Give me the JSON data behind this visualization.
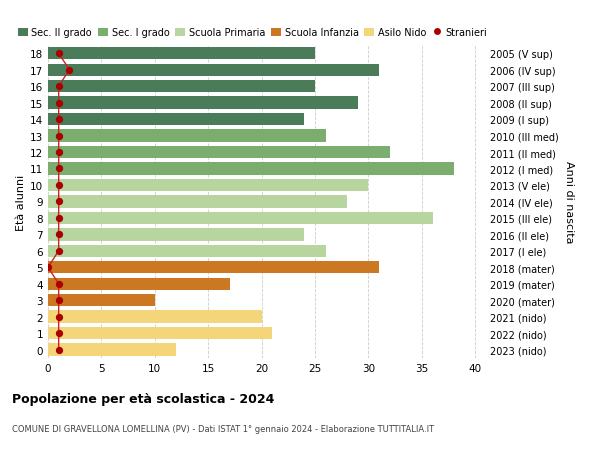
{
  "ages": [
    18,
    17,
    16,
    15,
    14,
    13,
    12,
    11,
    10,
    9,
    8,
    7,
    6,
    5,
    4,
    3,
    2,
    1,
    0
  ],
  "years": [
    "2005 (V sup)",
    "2006 (IV sup)",
    "2007 (III sup)",
    "2008 (II sup)",
    "2009 (I sup)",
    "2010 (III med)",
    "2011 (II med)",
    "2012 (I med)",
    "2013 (V ele)",
    "2014 (IV ele)",
    "2015 (III ele)",
    "2016 (II ele)",
    "2017 (I ele)",
    "2018 (mater)",
    "2019 (mater)",
    "2020 (mater)",
    "2021 (nido)",
    "2022 (nido)",
    "2023 (nido)"
  ],
  "bar_values": [
    25,
    31,
    25,
    29,
    24,
    26,
    32,
    38,
    30,
    28,
    36,
    24,
    26,
    31,
    17,
    10,
    20,
    21,
    12
  ],
  "bar_colors": [
    "#4a7c59",
    "#4a7c59",
    "#4a7c59",
    "#4a7c59",
    "#4a7c59",
    "#7aad6e",
    "#7aad6e",
    "#7aad6e",
    "#b8d5a0",
    "#b8d5a0",
    "#b8d5a0",
    "#b8d5a0",
    "#b8d5a0",
    "#cc7722",
    "#cc7722",
    "#cc7722",
    "#f5d57a",
    "#f5d57a",
    "#f5d57a"
  ],
  "stranieri_values": [
    1,
    2,
    1,
    1,
    1,
    1,
    1,
    1,
    1,
    1,
    1,
    1,
    1,
    0,
    1,
    1,
    1,
    1,
    1
  ],
  "stranieri_color": "#aa0000",
  "stranieri_line_color": "#cc2222",
  "ylabel_left": "Età alunni",
  "ylabel_right": "Anni di nascita",
  "xlim": [
    0,
    41
  ],
  "xticks": [
    0,
    5,
    10,
    15,
    20,
    25,
    30,
    35,
    40
  ],
  "title": "Popolazione per età scolastica - 2024",
  "subtitle": "COMUNE DI GRAVELLONA LOMELLINA (PV) - Dati ISTAT 1° gennaio 2024 - Elaborazione TUTTITALIA.IT",
  "legend_labels": [
    "Sec. II grado",
    "Sec. I grado",
    "Scuola Primaria",
    "Scuola Infanzia",
    "Asilo Nido",
    "Stranieri"
  ],
  "legend_colors": [
    "#4a7c59",
    "#7aad6e",
    "#b8d5a0",
    "#cc7722",
    "#f5d57a",
    "#aa0000"
  ],
  "bg_color": "#ffffff",
  "grid_color": "#cccccc",
  "bar_height": 0.75
}
